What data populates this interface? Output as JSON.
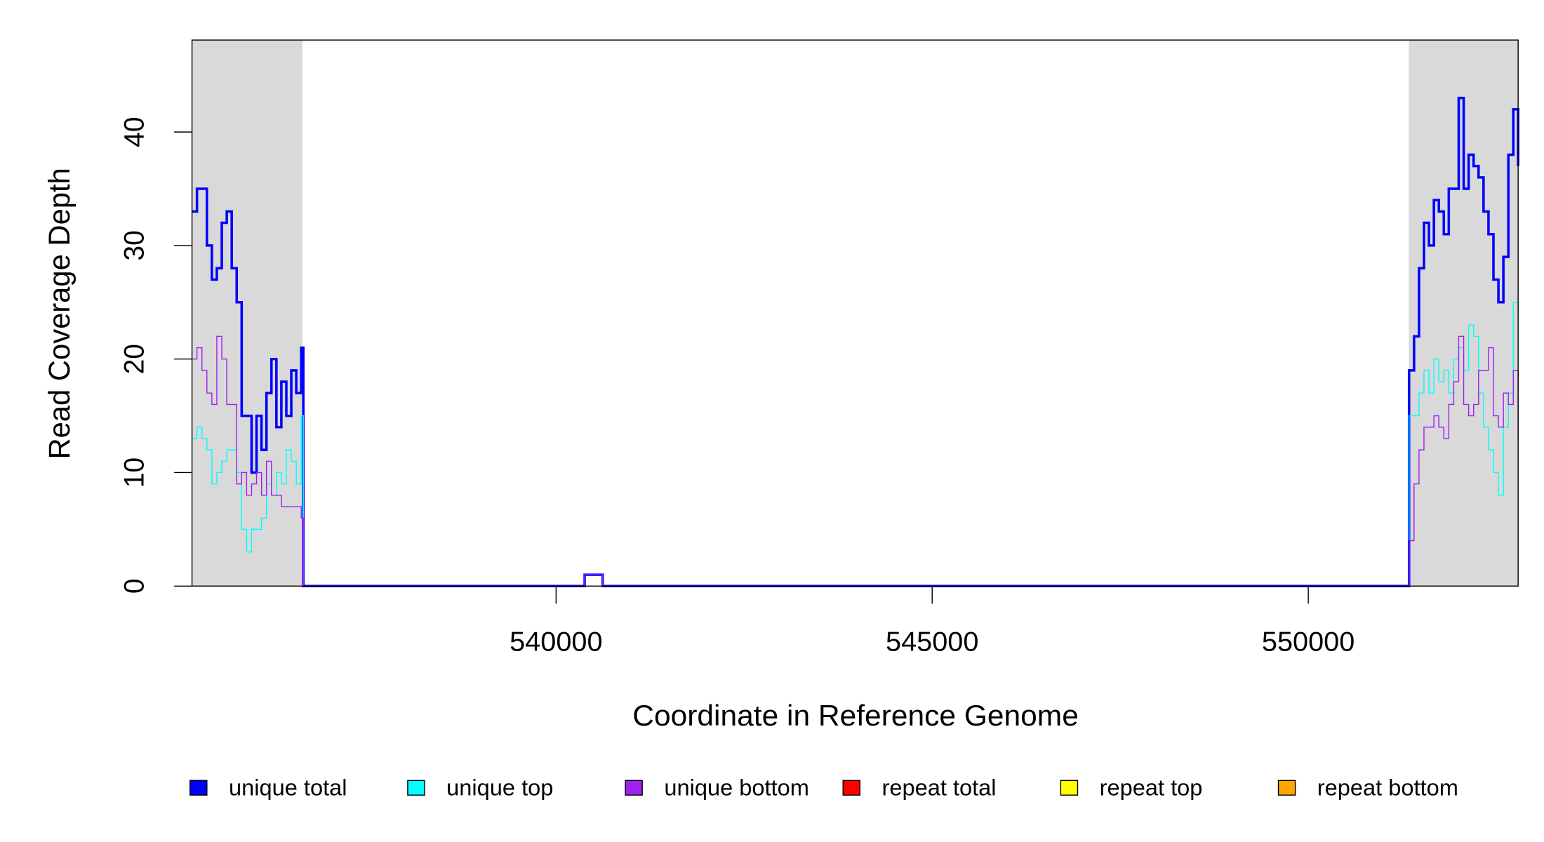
{
  "chart_data": {
    "type": "line",
    "step": true,
    "xlabel": "Coordinate in Reference Genome",
    "ylabel": "Read Coverage Depth",
    "xlim": [
      535160,
      552790
    ],
    "ylim": [
      0,
      48.1
    ],
    "xticks": [
      540000,
      545000,
      550000
    ],
    "yticks": [
      0,
      10,
      20,
      30,
      40
    ],
    "shaded_regions": [
      [
        535160,
        536628
      ],
      [
        551338,
        552790
      ]
    ],
    "shade_color": "#d9d9d9",
    "x": [
      535160,
      535226,
      535292,
      535358,
      535424,
      535490,
      535556,
      535622,
      535688,
      535754,
      535820,
      535886,
      535952,
      536018,
      536084,
      536150,
      536216,
      536282,
      536348,
      536414,
      536480,
      536546,
      536612,
      536640,
      540380,
      540620,
      551340,
      551406,
      551472,
      551538,
      551604,
      551670,
      551736,
      551802,
      551868,
      551934,
      552000,
      552066,
      552132,
      552198,
      552264,
      552330,
      552396,
      552462,
      552528,
      552594,
      552660,
      552726,
      552790
    ],
    "series": [
      {
        "name": "unique total",
        "color": "#0000ff",
        "width": 2.5,
        "values": [
          33,
          35,
          35,
          30,
          27,
          28,
          32,
          33,
          28,
          25,
          15,
          15,
          10,
          15,
          12,
          17,
          20,
          14,
          18,
          15,
          19,
          17,
          21,
          0,
          1,
          0,
          19,
          22,
          28,
          32,
          30,
          34,
          33,
          31,
          35,
          35,
          43,
          35,
          38,
          37,
          36,
          33,
          31,
          27,
          25,
          29,
          38,
          42,
          37
        ]
      },
      {
        "name": "unique top",
        "color": "#00ffff",
        "width": 1,
        "values": [
          13,
          14,
          13,
          12,
          9,
          10,
          11,
          12,
          12,
          10,
          5,
          3,
          5,
          5,
          6,
          9,
          8,
          10,
          9,
          12,
          11,
          9,
          15,
          0,
          0,
          0,
          15,
          15,
          17,
          19,
          17,
          20,
          18,
          19,
          17,
          20,
          21,
          19,
          23,
          22,
          17,
          14,
          12,
          10,
          8,
          14,
          17,
          25,
          24
        ]
      },
      {
        "name": "unique bottom",
        "color": "#a020f0",
        "width": 1,
        "values": [
          20,
          21,
          19,
          17,
          16,
          22,
          20,
          16,
          16,
          9,
          10,
          8,
          9,
          10,
          8,
          11,
          8,
          8,
          7,
          7,
          7,
          7,
          6,
          0,
          1,
          0,
          4,
          9,
          12,
          14,
          14,
          15,
          14,
          13,
          16,
          18,
          22,
          16,
          15,
          16,
          19,
          19,
          21,
          15,
          14,
          17,
          16,
          19,
          13
        ]
      },
      {
        "name": "repeat total",
        "color": "#ff0000",
        "width": 1,
        "values": [
          0,
          0,
          0,
          0,
          0,
          0,
          0,
          0,
          0,
          0,
          0,
          0,
          0,
          0,
          0,
          0,
          0,
          0,
          0,
          0,
          0,
          0,
          0,
          0,
          0,
          0,
          0,
          0,
          0,
          0,
          0,
          0,
          0,
          0,
          0,
          0,
          0,
          0,
          0,
          0,
          0,
          0,
          0,
          0,
          0,
          0,
          0,
          0,
          0
        ]
      },
      {
        "name": "repeat top",
        "color": "#ffff00",
        "width": 1,
        "values": [
          0,
          0,
          0,
          0,
          0,
          0,
          0,
          0,
          0,
          0,
          0,
          0,
          0,
          0,
          0,
          0,
          0,
          0,
          0,
          0,
          0,
          0,
          0,
          0,
          0,
          0,
          0,
          0,
          0,
          0,
          0,
          0,
          0,
          0,
          0,
          0,
          0,
          0,
          0,
          0,
          0,
          0,
          0,
          0,
          0,
          0,
          0,
          0,
          0
        ]
      },
      {
        "name": "repeat bottom",
        "color": "#ffa500",
        "width": 1,
        "values": [
          0,
          0,
          0,
          0,
          0,
          0,
          0,
          0,
          0,
          0,
          0,
          0,
          0,
          0,
          0,
          0,
          0,
          0,
          0,
          0,
          0,
          0,
          0,
          0,
          0,
          0,
          0,
          0,
          0,
          0,
          0,
          0,
          0,
          0,
          0,
          0,
          0,
          0,
          0,
          0,
          0,
          0,
          0,
          0,
          0,
          0,
          0,
          0,
          0
        ]
      }
    ]
  }
}
